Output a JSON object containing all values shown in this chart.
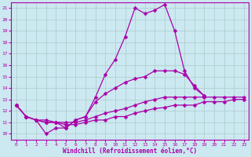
{
  "xlabel": "Windchill (Refroidissement éolien,°C)",
  "bg_color": "#cce8f0",
  "line_color": "#aa00aa",
  "grid_color": "#aacccc",
  "xlim": [
    -0.5,
    23.5
  ],
  "ylim": [
    9.5,
    21.5
  ],
  "yticks": [
    10,
    11,
    12,
    13,
    14,
    15,
    16,
    17,
    18,
    19,
    20,
    21
  ],
  "xticks": [
    0,
    1,
    2,
    3,
    4,
    5,
    6,
    7,
    8,
    9,
    10,
    11,
    12,
    13,
    14,
    15,
    16,
    17,
    18,
    19,
    20,
    21,
    22,
    23
  ],
  "series": [
    {
      "x": [
        0,
        1,
        2,
        3,
        4,
        5,
        6,
        7,
        8,
        9,
        10,
        11,
        12,
        13,
        14,
        15,
        16,
        17,
        18,
        19
      ],
      "y": [
        12.5,
        11.5,
        11.2,
        10.0,
        10.5,
        10.5,
        11.2,
        11.5,
        13.2,
        15.2,
        16.5,
        18.5,
        21.0,
        20.5,
        20.8,
        21.3,
        19.0,
        15.5,
        14.0,
        13.3
      ]
    },
    {
      "x": [
        0,
        1,
        2,
        3,
        4,
        5,
        6,
        7,
        8,
        9,
        10,
        11,
        12,
        13,
        14,
        15,
        16,
        17,
        18,
        19
      ],
      "y": [
        12.5,
        11.5,
        11.2,
        11.0,
        11.0,
        10.5,
        11.2,
        11.5,
        12.8,
        13.5,
        14.0,
        14.5,
        14.8,
        15.0,
        15.5,
        15.5,
        15.5,
        15.2,
        14.2,
        13.3
      ]
    },
    {
      "x": [
        0,
        1,
        2,
        3,
        4,
        5,
        6,
        7,
        8,
        9,
        10,
        11,
        12,
        13,
        14,
        15,
        16,
        17,
        18,
        19,
        20,
        21,
        22,
        23
      ],
      "y": [
        12.5,
        11.5,
        11.2,
        11.2,
        11.0,
        11.0,
        11.0,
        11.2,
        11.5,
        11.8,
        12.0,
        12.2,
        12.5,
        12.8,
        13.0,
        13.2,
        13.2,
        13.2,
        13.2,
        13.2,
        13.2,
        13.2,
        13.2,
        13.2
      ]
    },
    {
      "x": [
        0,
        1,
        2,
        3,
        4,
        5,
        6,
        7,
        8,
        9,
        10,
        11,
        12,
        13,
        14,
        15,
        16,
        17,
        18,
        19,
        20,
        21,
        22,
        23
      ],
      "y": [
        12.5,
        11.5,
        11.2,
        11.0,
        11.0,
        10.8,
        10.8,
        11.0,
        11.2,
        11.2,
        11.5,
        11.5,
        11.8,
        12.0,
        12.2,
        12.3,
        12.5,
        12.5,
        12.5,
        12.8,
        12.8,
        12.8,
        13.0,
        13.0
      ]
    }
  ],
  "marker": "D",
  "markersize": 2.5,
  "linewidth": 0.9
}
